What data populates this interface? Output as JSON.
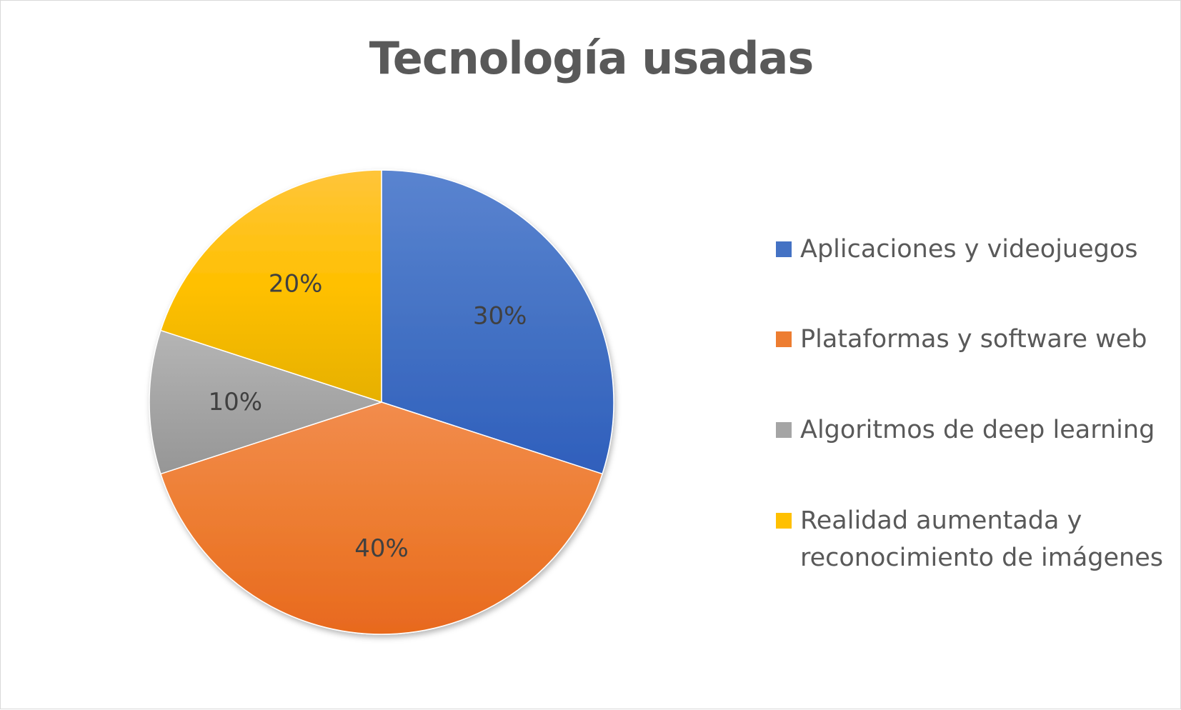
{
  "chart_data": {
    "type": "pie",
    "title": "Tecnología usadas",
    "slices": [
      {
        "label": "Aplicaciones y videojuegos",
        "value": 30,
        "display": "30%",
        "color": "#4472C4",
        "color_dark": "#2F5FBC",
        "color_light": "#5A84D0"
      },
      {
        "label": "Plataformas y software web",
        "value": 40,
        "display": "40%",
        "color": "#ED7D31",
        "color_dark": "#E8691E",
        "color_light": "#F28C4D"
      },
      {
        "label": "Algoritmos de deep learning",
        "value": 10,
        "display": "10%",
        "color": "#A5A5A5",
        "color_dark": "#969696",
        "color_light": "#B5B5B5"
      },
      {
        "label": "Realidad aumentada y reconocimiento de imágenes",
        "value": 20,
        "display": "20%",
        "color": "#FFC000",
        "color_dark": "#E6B000",
        "color_light": "#FFC53A"
      }
    ],
    "legend_position": "right",
    "label_color": "#404040"
  },
  "legend": {
    "items": [
      {
        "lines": [
          "Aplicaciones y videojuegos"
        ]
      },
      {
        "lines": [
          "Plataformas y software web"
        ]
      },
      {
        "lines": [
          "Algoritmos de deep learning"
        ]
      },
      {
        "lines": [
          "Realidad aumentada y",
          "reconocimiento de imágenes"
        ]
      }
    ]
  }
}
